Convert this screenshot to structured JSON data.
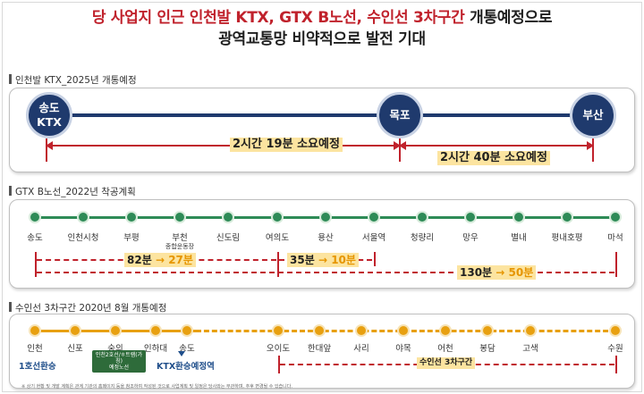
{
  "headline": {
    "line1_red": "당 사업지 인근 인천발 KTX, GTX B노선, 수인선 3차구간",
    "line1_dark": " 개통예정으로",
    "line2": "광역교통망 비약적으로 발전 기대"
  },
  "ktx": {
    "title": "인천발 KTX_2025년 개통예정",
    "stations": [
      "송도\nKTX",
      "목포",
      "부산"
    ],
    "durations": [
      "2시간 19분 소요예정",
      "2시간 40분 소요예정"
    ]
  },
  "gtx": {
    "title": "GTX B노선_2022년 착공계획",
    "stations": [
      "송도",
      "인천시청",
      "부평",
      "부천",
      "신도림",
      "여의도",
      "용산",
      "서울역",
      "청량리",
      "망우",
      "별내",
      "평내호평",
      "마석"
    ],
    "station_sub": "종합운동장",
    "times": [
      {
        "before": "82분",
        "arrow": "→",
        "after": "27분"
      },
      {
        "before": "35분",
        "arrow": "→",
        "after": "10분"
      },
      {
        "before": "130분",
        "arrow": "→",
        "after": "50분"
      }
    ]
  },
  "suin": {
    "title": "수인선 3차구간 2020년 8월 개통예정",
    "stations": [
      "인천",
      "신포",
      "숭의",
      "인하대",
      "송도",
      "오이도",
      "한대앞",
      "사리",
      "야목",
      "어천",
      "봉담",
      "고색",
      "수원"
    ],
    "transfer1": "1호선환승",
    "badge": "인천2호선/ㅎ트램(가칭)\n예정노선",
    "transfer_ktx": "KTX환승예정역",
    "segment_label": "수인선 3차구간"
  },
  "footnote": "※ 상기 현황 및 개발 계획은 관계 기관의 홈페이지 등을 참조하여 작성된 것으로 사업계획 및 일정은 당사와는 무관하며, 추후 변경될 수 있습니다.",
  "colors": {
    "accent_red": "#c0222c",
    "ktx_navy": "#1f3a6d",
    "gtx_green": "#2e8b57",
    "suin_orange": "#e8a010",
    "highlight_yellow": "#fce4a0"
  }
}
